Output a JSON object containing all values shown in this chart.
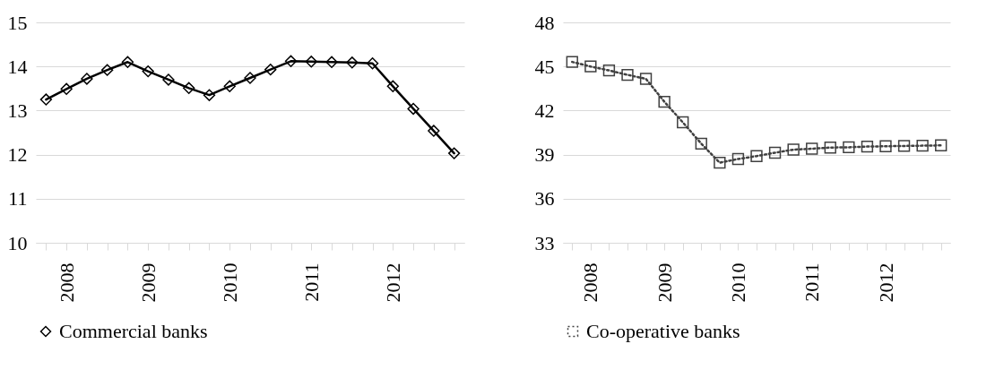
{
  "chart_data": [
    {
      "type": "line",
      "categories": [
        null,
        "2008",
        null,
        null,
        null,
        "2009",
        null,
        null,
        null,
        "2010",
        null,
        null,
        null,
        "2011",
        null,
        null,
        null,
        "2012",
        null,
        null,
        null
      ],
      "series": [
        {
          "name": "Commercial banks",
          "color": "#000000",
          "values": [
            13.25,
            13.49,
            13.72,
            13.92,
            14.1,
            13.89,
            13.7,
            13.51,
            13.35,
            13.55,
            13.74,
            13.93,
            14.12,
            14.11,
            14.1,
            14.09,
            14.07,
            13.55,
            13.04,
            12.54,
            12.03
          ]
        }
      ],
      "ylim": [
        10,
        15
      ],
      "yticks": [
        10,
        11,
        12,
        13,
        14,
        15
      ],
      "grid": "y",
      "legend": "bottom",
      "marker": "diamond",
      "line_style": "solid"
    },
    {
      "type": "line",
      "categories": [
        null,
        "2008",
        null,
        null,
        null,
        "2009",
        null,
        null,
        null,
        "2010",
        null,
        null,
        null,
        "2011",
        null,
        null,
        null,
        "2012",
        null,
        null,
        null
      ],
      "series": [
        {
          "name": "Co-operative banks",
          "color": "#404040",
          "values": [
            45.31,
            45.0,
            44.73,
            44.43,
            44.16,
            42.6,
            41.2,
            39.75,
            38.45,
            38.7,
            38.9,
            39.13,
            39.34,
            39.4,
            39.48,
            39.5,
            39.55,
            39.57,
            39.59,
            39.61,
            39.63
          ]
        }
      ],
      "ylim": [
        33,
        48
      ],
      "yticks": [
        33,
        36,
        39,
        42,
        45,
        48
      ],
      "grid": "y",
      "legend": "bottom",
      "marker": "square",
      "line_style": "dotted"
    }
  ]
}
